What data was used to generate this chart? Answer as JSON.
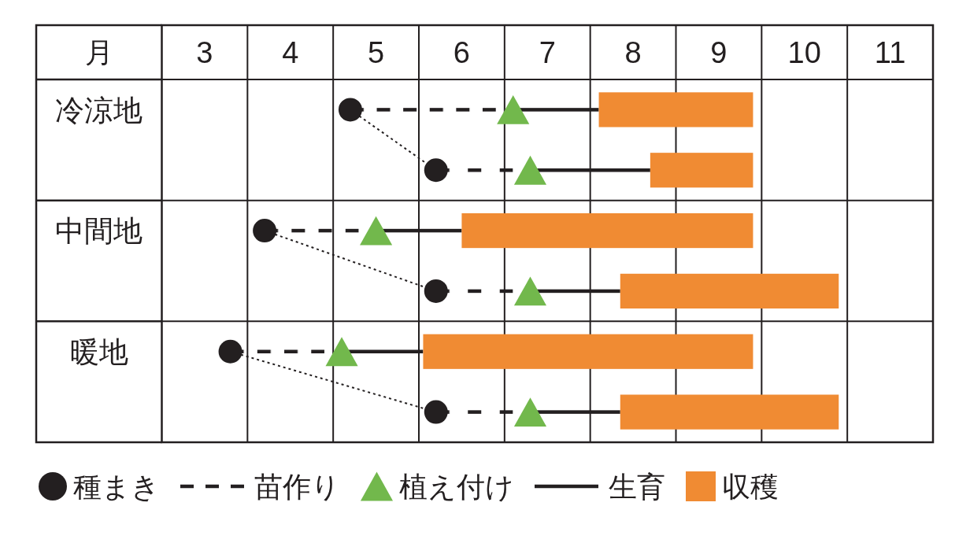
{
  "chart_data": {
    "type": "bar",
    "orientation": "horizontal",
    "xlabel": "月",
    "categories": [
      "冷涼地",
      null,
      "中間地",
      null,
      "暖地",
      null
    ],
    "xlim": [
      3,
      12
    ],
    "xticks": [
      {
        "value": 3.5,
        "label": "3"
      },
      {
        "value": 4,
        "label": null
      },
      {
        "value": 4.5,
        "label": "4"
      },
      {
        "value": 5,
        "label": null
      },
      {
        "value": 5.5,
        "label": "5"
      },
      {
        "value": 6,
        "label": null
      },
      {
        "value": 6.5,
        "label": "6"
      },
      {
        "value": 7,
        "label": null
      },
      {
        "value": 7.5,
        "label": "7"
      },
      {
        "value": 8,
        "label": null
      },
      {
        "value": 8.5,
        "label": "8"
      },
      {
        "value": 9,
        "label": null
      },
      {
        "value": 9.5,
        "label": "9"
      },
      {
        "value": 10,
        "label": null
      },
      {
        "value": 10.5,
        "label": "10"
      },
      {
        "value": 11,
        "label": null
      },
      {
        "value": 11.5,
        "label": "11"
      }
    ],
    "grid": true,
    "legend": "bottom",
    "series": [
      {
        "name": "種まき",
        "type": "scatter",
        "marker": "circle",
        "color": "#231f20",
        "values": [
          5.2,
          6.2,
          4.2,
          6.2,
          3.8,
          6.2
        ]
      },
      {
        "name": "苗作り",
        "line_style": "dashed",
        "color": "#231f20",
        "base": [
          5.2,
          6.2,
          4.2,
          6.2,
          3.8,
          6.2
        ],
        "values": [
          1.7,
          0.9,
          1.1,
          0.9,
          1.1,
          0.9
        ]
      },
      {
        "name": "植え付け",
        "type": "scatter",
        "marker": "triangle",
        "color": "#72b84c",
        "values": [
          7.1,
          7.3,
          5.5,
          7.3,
          5.1,
          7.3
        ]
      },
      {
        "name": "生育",
        "line_style": "solid",
        "color": "#231f20",
        "base": [
          7.1,
          7.3,
          5.5,
          7.3,
          5.1,
          7.3
        ],
        "values": [
          1.0,
          1.4,
          1.0,
          1.05,
          0.95,
          1.05
        ]
      },
      {
        "name": "収穫",
        "color": "#f08b33",
        "base": [
          8.1,
          8.7,
          6.5,
          8.35,
          6.05,
          8.35
        ],
        "values": [
          1.8,
          1.2,
          3.4,
          2.55,
          3.85,
          2.55
        ]
      },
      {
        "type": "line",
        "line_style": "dotted",
        "color": "#231f20",
        "values": [
          5.2,
          6.2,
          null,
          null,
          null,
          null
        ]
      },
      {
        "type": "line",
        "line_style": "dotted",
        "color": "#231f20",
        "values": [
          null,
          null,
          4.2,
          6.2,
          null,
          null
        ]
      },
      {
        "type": "line",
        "line_style": "dotted",
        "color": "#231f20",
        "values": [
          null,
          null,
          null,
          null,
          3.8,
          6.2
        ]
      }
    ]
  }
}
